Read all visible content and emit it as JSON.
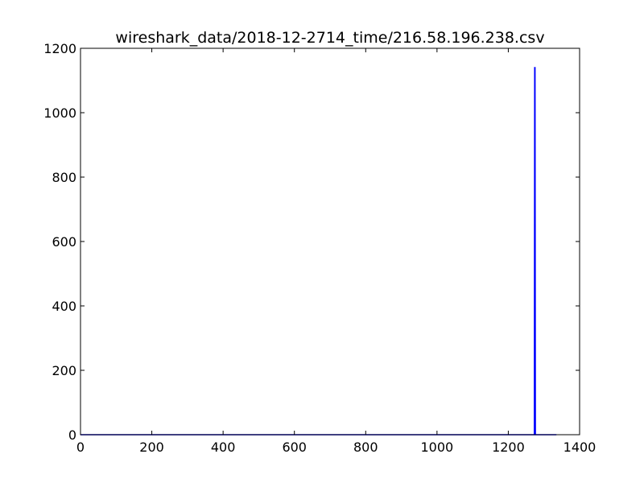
{
  "chart_data": {
    "type": "line",
    "title": "wireshark_data/2018-12-2714_time/216.58.196.238.csv",
    "xlabel": "",
    "ylabel": "",
    "xlim": [
      0,
      1400
    ],
    "ylim": [
      0,
      1200
    ],
    "xticks": [
      0,
      200,
      400,
      600,
      800,
      1000,
      1200,
      1400
    ],
    "yticks": [
      0,
      200,
      400,
      600,
      800,
      1000,
      1200
    ],
    "xtick_labels": [
      "0",
      "200",
      "400",
      "600",
      "800",
      "1000",
      "1200",
      "1400"
    ],
    "ytick_labels": [
      "0",
      "200",
      "400",
      "600",
      "800",
      "1000",
      "1200"
    ],
    "grid": false,
    "series": [
      {
        "color": "#0000ff",
        "x": [
          0,
          1273,
          1274,
          1275,
          1276,
          1335
        ],
        "y": [
          0,
          0,
          1140,
          1140,
          0,
          0
        ]
      }
    ]
  }
}
